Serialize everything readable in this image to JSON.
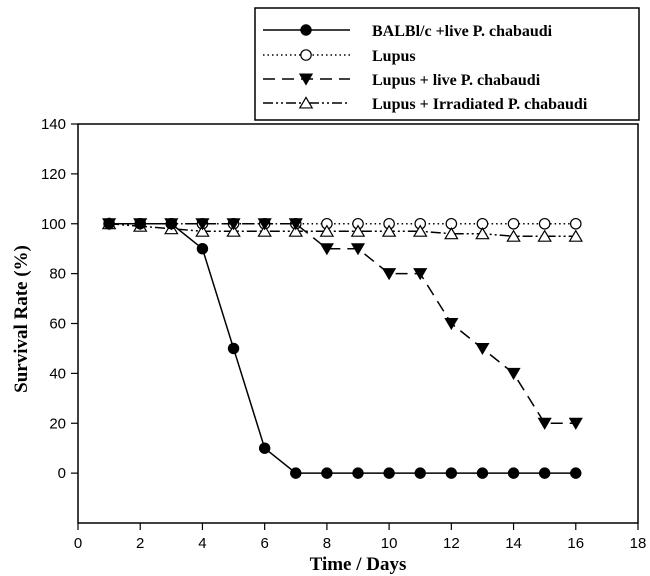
{
  "chart_data": {
    "type": "line",
    "title": "",
    "xlabel": "Time / Days",
    "ylabel": "Survival Rate (%)",
    "xlim": [
      0,
      18
    ],
    "ylim": [
      -20,
      140
    ],
    "xticks": [
      "0",
      "2",
      "4",
      "6",
      "8",
      "10",
      "12",
      "14",
      "16",
      "18"
    ],
    "yticks": [
      "0",
      "20",
      "40",
      "60",
      "80",
      "100",
      "120",
      "140"
    ],
    "grid": false,
    "legend_position": "top-right",
    "x": [
      1,
      2,
      3,
      4,
      5,
      6,
      7,
      8,
      9,
      10,
      11,
      12,
      13,
      14,
      15,
      16
    ],
    "series": [
      {
        "name": "BALBl/c +live P. chabaudi",
        "line_style": "solid",
        "marker": "filled-circle",
        "values": [
          100,
          100,
          100,
          90,
          50,
          10,
          0,
          0,
          0,
          0,
          0,
          0,
          0,
          0,
          0,
          0
        ]
      },
      {
        "name": "Lupus",
        "line_style": "dotted",
        "marker": "open-circle",
        "values": [
          100,
          100,
          100,
          100,
          100,
          100,
          100,
          100,
          100,
          100,
          100,
          100,
          100,
          100,
          100,
          100
        ]
      },
      {
        "name": "Lupus + live P. chabaudi",
        "line_style": "dashed",
        "marker": "filled-triangle-down",
        "values": [
          100,
          100,
          100,
          100,
          100,
          100,
          100,
          90,
          90,
          80,
          80,
          60,
          50,
          40,
          20,
          20
        ]
      },
      {
        "name": "Lupus + Irradiated P. chabaudi",
        "line_style": "dash-dot-dot",
        "marker": "open-triangle-up",
        "values": [
          100,
          99,
          98,
          97,
          97,
          97,
          97,
          97,
          97,
          97,
          97,
          96,
          96,
          95,
          95,
          95
        ]
      }
    ]
  }
}
